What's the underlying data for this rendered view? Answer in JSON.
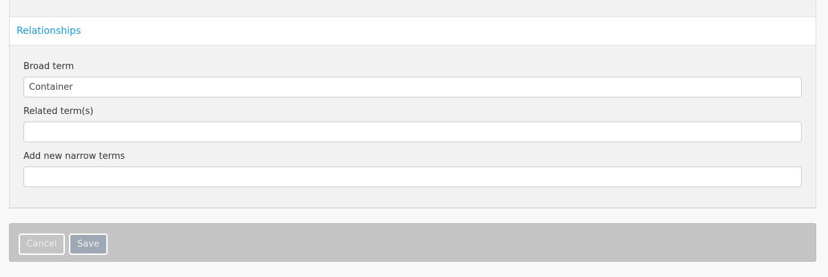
{
  "section": {
    "title": "Relationships"
  },
  "fields": [
    {
      "label": "Broad term",
      "value": "Container"
    },
    {
      "label": "Related term(s)",
      "value": ""
    },
    {
      "label": "Add new narrow terms",
      "value": ""
    }
  ],
  "actions": {
    "cancel": "Cancel",
    "save": "Save"
  }
}
